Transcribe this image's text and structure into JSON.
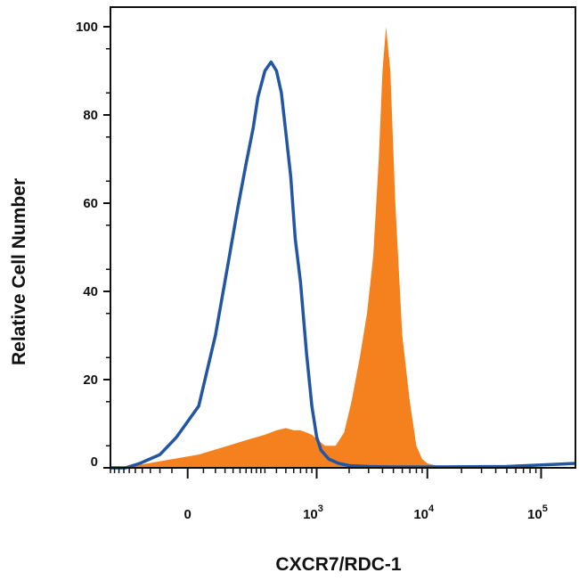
{
  "chart_data": {
    "type": "area",
    "title": "",
    "xlabel": "CXCR7/RDC-1",
    "ylabel": "Relative Cell Number",
    "x_scale": "biexponential",
    "xlim": [
      -300,
      200000
    ],
    "ylim": [
      0,
      100
    ],
    "grid": false,
    "legend": "none",
    "y_ticks": [
      "0",
      "20",
      "40",
      "60",
      "80",
      "100"
    ],
    "x_ticks": [
      {
        "value": 0,
        "base": "0",
        "exp": ""
      },
      {
        "value": 1000,
        "base": "10",
        "exp": "3"
      },
      {
        "value": 10000,
        "base": "10",
        "exp": "4"
      },
      {
        "value": 100000,
        "base": "10",
        "exp": "5"
      }
    ],
    "series": [
      {
        "style": "outline",
        "color": "#2255a4",
        "x": [
          -300,
          -200,
          -130,
          -60,
          -20,
          20,
          60,
          100,
          140,
          180,
          220,
          250,
          300,
          350,
          400,
          450,
          500,
          560,
          620,
          700,
          800,
          900,
          1000,
          1100,
          1300,
          1600,
          2000,
          3000,
          5000,
          10000,
          50000,
          200000
        ],
        "y": [
          0,
          0,
          1,
          3,
          7,
          14,
          30,
          46,
          59,
          69,
          77,
          84,
          90,
          92,
          90,
          85,
          76,
          66,
          52,
          42,
          26,
          14,
          7,
          4,
          2,
          1,
          0.5,
          0.3,
          0.2,
          0.2,
          0.3,
          1
        ]
      },
      {
        "style": "filled",
        "color": "#f5801e",
        "x": [
          -300,
          -150,
          -60,
          20,
          100,
          200,
          300,
          400,
          500,
          600,
          700,
          800,
          900,
          1000,
          1200,
          1500,
          1800,
          2100,
          2500,
          2900,
          3300,
          3700,
          4000,
          4300,
          4700,
          5200,
          6000,
          7000,
          8000,
          9000,
          10000,
          12000,
          20000,
          200000
        ],
        "y": [
          0,
          0.5,
          1.5,
          3,
          5,
          6.5,
          7.5,
          8.5,
          9,
          8.5,
          8.5,
          8,
          7.5,
          6.5,
          5,
          5,
          8,
          15,
          25,
          35,
          48,
          70,
          90,
          100,
          90,
          60,
          30,
          15,
          5,
          2,
          1,
          0.5,
          0,
          0
        ]
      }
    ]
  }
}
